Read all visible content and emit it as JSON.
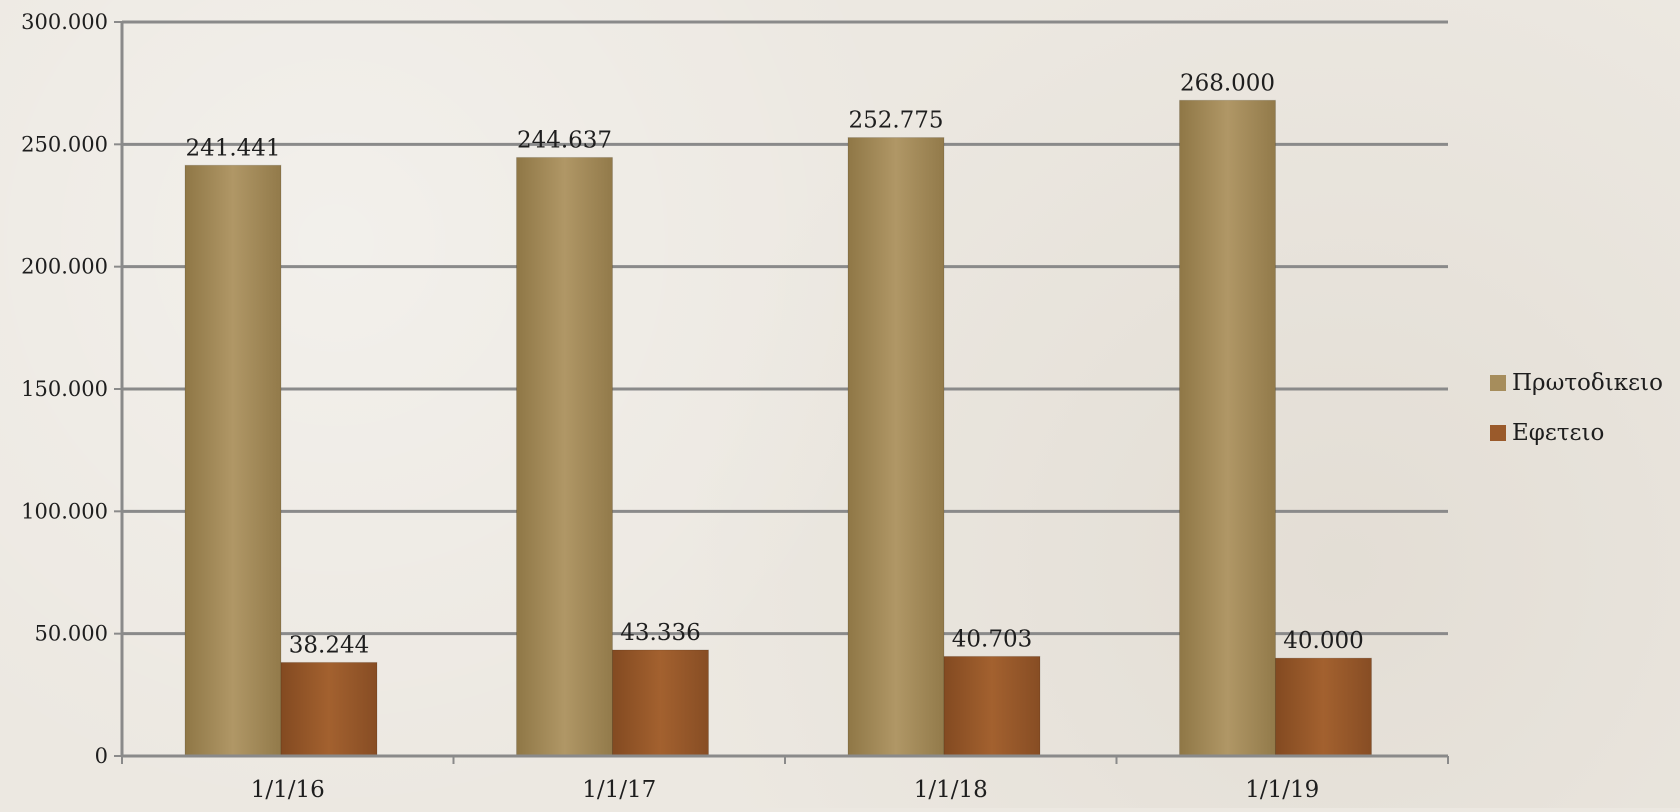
{
  "chart_data": {
    "type": "bar",
    "title": "",
    "xlabel": "",
    "ylabel": "",
    "categories": [
      "1/1/16",
      "1/1/17",
      "1/1/18",
      "1/1/19"
    ],
    "series": [
      {
        "name": "Πρωτοδικειο",
        "values": [
          241441,
          244637,
          252775,
          268000
        ],
        "labels": [
          "241.441",
          "244.637",
          "252.775",
          "268.000"
        ],
        "color": "#a68d5c"
      },
      {
        "name": "Εφετειο",
        "values": [
          38244,
          43336,
          40703,
          40000
        ],
        "labels": [
          "38.244",
          "43.336",
          "40.703",
          "40.000"
        ],
        "color": "#9a5a2b"
      }
    ],
    "ylim": [
      0,
      300000
    ],
    "yticks": [
      0,
      50000,
      100000,
      150000,
      200000,
      250000,
      300000
    ],
    "ytick_labels": [
      "0",
      "50.000",
      "100.000",
      "150.000",
      "200.000",
      "250.000",
      "300.000"
    ],
    "grid": true,
    "legend_position": "right"
  }
}
